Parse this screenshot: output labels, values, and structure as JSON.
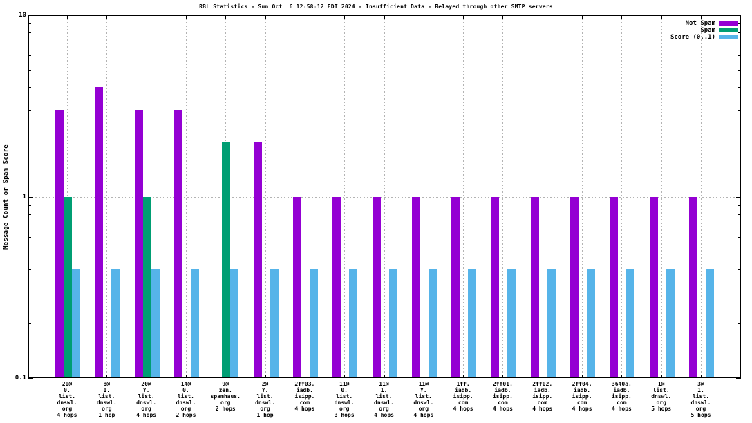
{
  "header": {
    "title": "RBL Statistics - Sun Oct  6 12:58:12 EDT 2024 - Insufficient Data - Relayed through other SMTP servers"
  },
  "colors": {
    "not_spam": "#9400d3",
    "spam": "#009e73",
    "score": "#56b4e9",
    "grid": "#b3b3b3",
    "axis": "#000000",
    "background": "#ffffff"
  },
  "chart_data": {
    "type": "bar",
    "title": "RBL Statistics - Sun Oct  6 12:58:12 EDT 2024 - Insufficient Data - Relayed through other SMTP servers",
    "xlabel": "",
    "ylabel": "Message Count or Spam Score",
    "yscale": "log",
    "ylim": [
      0.1,
      10
    ],
    "grid": true,
    "legend_position": "top-right",
    "y_ticks": {
      "values": [
        10,
        1,
        0.1
      ],
      "labels": [
        "10",
        "1",
        "0.1"
      ]
    },
    "categories": [
      [
        "20@",
        "0.",
        "list.",
        "dnswl.",
        "org",
        "4 hops"
      ],
      [
        "8@",
        "1.",
        "list.",
        "dnswl.",
        "org",
        "1 hop"
      ],
      [
        "20@",
        "Y.",
        "list.",
        "dnswl.",
        "org",
        "4 hops"
      ],
      [
        "14@",
        "0.",
        "list.",
        "dnswl.",
        "org",
        "2 hops"
      ],
      [
        "9@",
        "zen.",
        "spamhaus.",
        "org",
        "2 hops"
      ],
      [
        "2@",
        "Y.",
        "list.",
        "dnswl.",
        "org",
        "1 hop"
      ],
      [
        "2ff03.",
        "iadb.",
        "isipp.",
        "com",
        "4 hops"
      ],
      [
        "11@",
        "0.",
        "list.",
        "dnswl.",
        "org",
        "3 hops"
      ],
      [
        "11@",
        "1.",
        "list.",
        "dnswl.",
        "org",
        "4 hops"
      ],
      [
        "11@",
        "Y.",
        "list.",
        "dnswl.",
        "org",
        "4 hops"
      ],
      [
        "1ff.",
        "iadb.",
        "isipp.",
        "com",
        "4 hops"
      ],
      [
        "2ff01.",
        "iadb.",
        "isipp.",
        "com",
        "4 hops"
      ],
      [
        "2ff02.",
        "iadb.",
        "isipp.",
        "com",
        "4 hops"
      ],
      [
        "2ff04.",
        "iadb.",
        "isipp.",
        "com",
        "4 hops"
      ],
      [
        "3640a.",
        "iadb.",
        "isipp.",
        "com",
        "4 hops"
      ],
      [
        "1@",
        "list.",
        "dnswl.",
        "org",
        "5 hops"
      ],
      [
        "3@",
        "1.",
        "list.",
        "dnswl.",
        "org",
        "5 hops"
      ]
    ],
    "series": [
      {
        "name": "Not Spam",
        "color": "#9400d3",
        "values": [
          3,
          4,
          3,
          3,
          null,
          2,
          1,
          1,
          1,
          1,
          1,
          1,
          1,
          1,
          1,
          1,
          1
        ]
      },
      {
        "name": "Spam",
        "color": "#009e73",
        "values": [
          1,
          null,
          1,
          null,
          2,
          null,
          null,
          null,
          null,
          null,
          null,
          null,
          null,
          null,
          null,
          null,
          null
        ]
      },
      {
        "name": "Score (0..1)",
        "color": "#56b4e9",
        "values": [
          0.4,
          0.4,
          0.4,
          0.4,
          0.4,
          0.4,
          0.4,
          0.4,
          0.4,
          0.4,
          0.4,
          0.4,
          0.4,
          0.4,
          0.4,
          0.4,
          0.4
        ]
      }
    ]
  }
}
